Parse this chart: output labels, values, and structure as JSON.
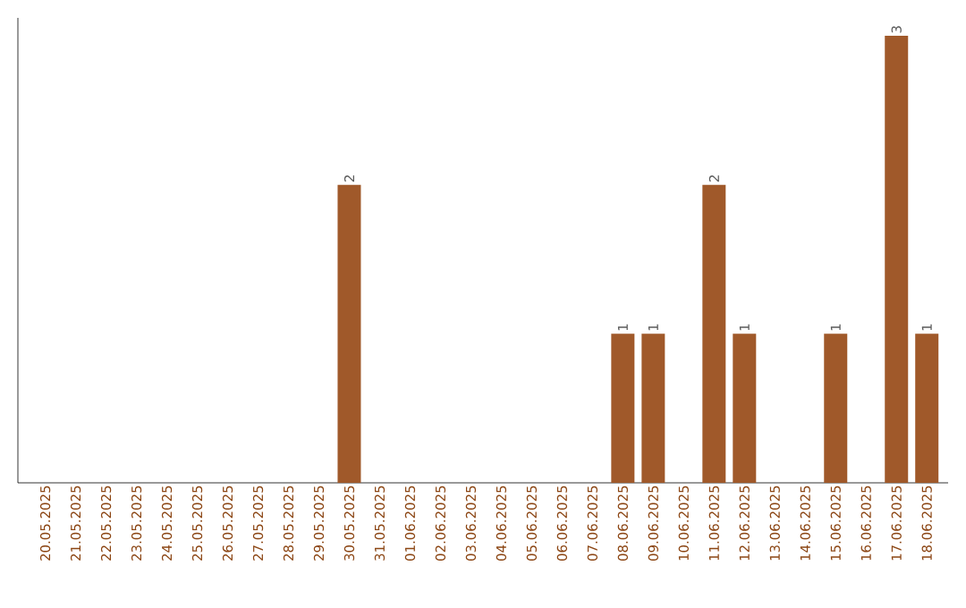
{
  "chart_data": {
    "type": "bar",
    "categories": [
      "20.05.2025",
      "21.05.2025",
      "22.05.2025",
      "23.05.2025",
      "24.05.2025",
      "25.05.2025",
      "26.05.2025",
      "27.05.2025",
      "28.05.2025",
      "29.05.2025",
      "30.05.2025",
      "31.05.2025",
      "01.06.2025",
      "02.06.2025",
      "03.06.2025",
      "04.06.2025",
      "05.06.2025",
      "06.06.2025",
      "07.06.2025",
      "08.06.2025",
      "09.06.2025",
      "10.06.2025",
      "11.06.2025",
      "12.06.2025",
      "13.06.2025",
      "14.06.2025",
      "15.06.2025",
      "16.06.2025",
      "17.06.2025",
      "18.06.2025"
    ],
    "values": [
      0,
      0,
      0,
      0,
      0,
      0,
      0,
      0,
      0,
      0,
      2,
      0,
      0,
      0,
      0,
      0,
      0,
      0,
      0,
      1,
      1,
      0,
      2,
      1,
      0,
      0,
      1,
      0,
      3,
      1
    ],
    "value_labels": [
      null,
      null,
      null,
      null,
      null,
      null,
      null,
      null,
      null,
      null,
      "2",
      null,
      null,
      null,
      null,
      null,
      null,
      null,
      null,
      "1",
      "1",
      null,
      "2",
      "1",
      null,
      null,
      "1",
      null,
      "3",
      "1"
    ],
    "color": "#a0592a",
    "ylim": [
      0,
      3.12
    ],
    "tick_labels": "x"
  }
}
